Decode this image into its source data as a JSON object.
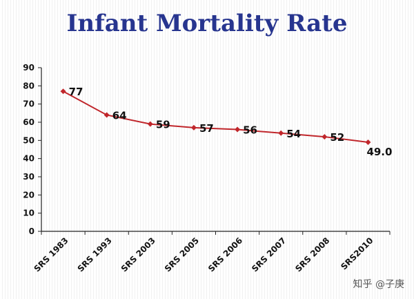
{
  "chart_data": {
    "type": "line",
    "title": "Infant Mortality Rate",
    "categories": [
      "SRS 1983",
      "SRS 1993",
      "SRS 2003",
      "SRS 2005",
      "SRS 2006",
      "SRS 2007",
      "SRS 2008",
      "SRS2010"
    ],
    "series": [
      {
        "values": [
          77,
          64,
          59,
          57,
          56,
          54,
          52,
          49.0
        ],
        "data_labels": [
          "77",
          "64",
          "59",
          "57",
          "56",
          "54",
          "52",
          "49.0"
        ]
      }
    ],
    "ylim": [
      0,
      90
    ],
    "yticks": [
      "0",
      "10",
      "20",
      "30",
      "40",
      "50",
      "60",
      "70",
      "80",
      "90"
    ],
    "xlabel": "",
    "ylabel": "",
    "grid": false,
    "legend": "none",
    "line_color": "#c0262b",
    "marker_color": "#c0262b"
  },
  "watermark": "知乎 @子庚"
}
